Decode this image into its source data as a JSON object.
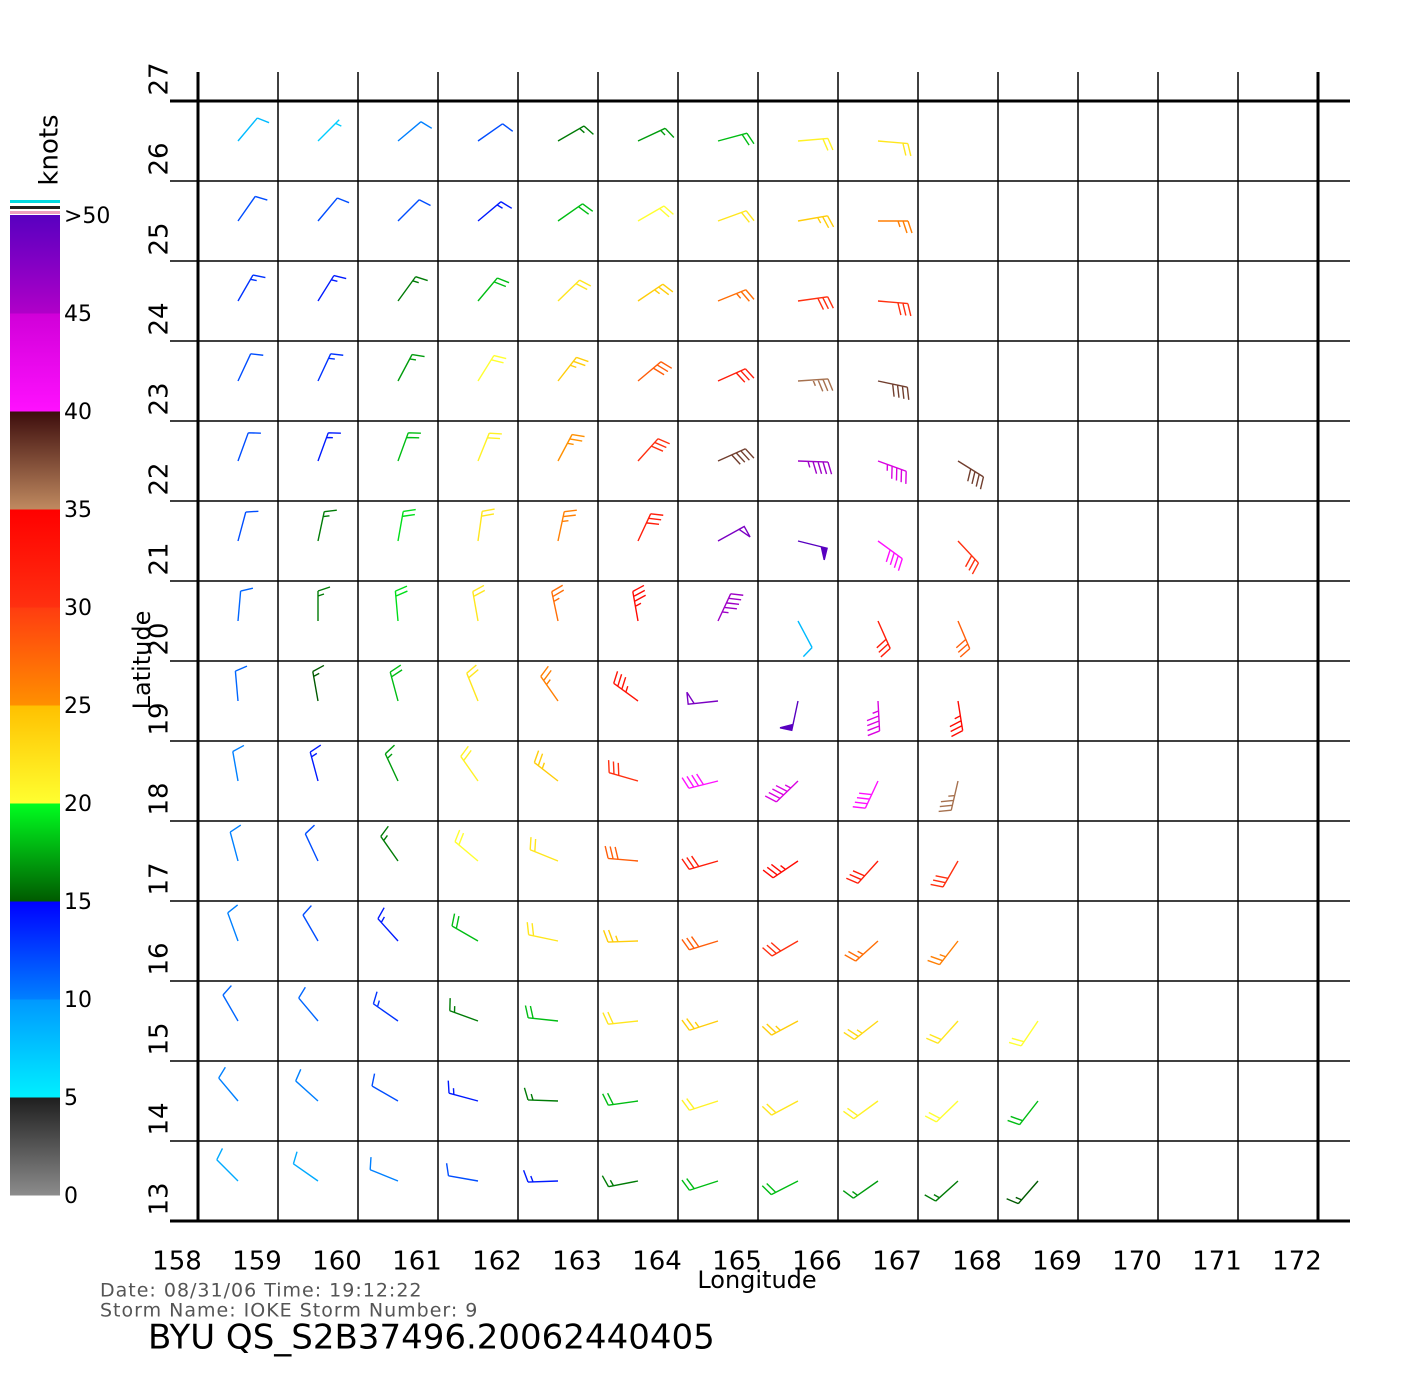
{
  "plot": {
    "x_label": "Longitude",
    "y_label": "Latitude",
    "xlim": [
      158,
      172
    ],
    "ylim": [
      13,
      27
    ],
    "xticks": [
      158,
      159,
      160,
      161,
      162,
      163,
      164,
      165,
      166,
      167,
      168,
      169,
      170,
      171,
      172
    ],
    "yticks": [
      13,
      14,
      15,
      16,
      17,
      18,
      19,
      20,
      21,
      22,
      23,
      24,
      25,
      26,
      27
    ],
    "grid": true,
    "rows": [
      {
        "lat": 26.5,
        "lon": [
          158.5,
          159.5,
          160.5,
          161.5,
          162.5,
          163.5,
          164.5,
          165.5,
          166.5
        ],
        "speed": [
          8,
          7,
          10,
          12,
          16,
          17,
          18,
          21,
          22
        ],
        "dir": [
          40,
          45,
          50,
          55,
          60,
          65,
          75,
          85,
          95
        ]
      },
      {
        "lat": 25.5,
        "lon": [
          158.5,
          159.5,
          160.5,
          161.5,
          162.5,
          163.5,
          164.5,
          165.5,
          166.5
        ],
        "speed": [
          12,
          12,
          12,
          14,
          18,
          20,
          22,
          24,
          26
        ],
        "dir": [
          35,
          40,
          45,
          50,
          55,
          60,
          70,
          80,
          90
        ]
      },
      {
        "lat": 24.5,
        "lon": [
          158.5,
          159.5,
          160.5,
          161.5,
          162.5,
          163.5,
          164.5,
          165.5,
          166.5
        ],
        "speed": [
          13,
          14,
          16,
          18,
          22,
          24,
          27,
          30,
          30
        ],
        "dir": [
          30,
          32,
          36,
          40,
          46,
          56,
          68,
          82,
          95
        ]
      },
      {
        "lat": 23.5,
        "lon": [
          158.5,
          159.5,
          160.5,
          161.5,
          162.5,
          163.5,
          164.5,
          165.5,
          166.5
        ],
        "speed": [
          12,
          13,
          17,
          20,
          24,
          28,
          32,
          36,
          38
        ],
        "dir": [
          25,
          25,
          28,
          32,
          38,
          50,
          66,
          86,
          102
        ]
      },
      {
        "lat": 22.5,
        "lon": [
          158.5,
          159.5,
          160.5,
          161.5,
          162.5,
          163.5,
          164.5,
          165.5,
          166.5,
          167.5
        ],
        "speed": [
          12,
          14,
          18,
          21,
          25,
          30,
          38,
          46,
          44,
          38
        ],
        "dir": [
          20,
          20,
          20,
          22,
          28,
          42,
          66,
          92,
          110,
          122
        ]
      },
      {
        "lat": 21.5,
        "lon": [
          158.5,
          159.5,
          160.5,
          161.5,
          162.5,
          163.5,
          164.5,
          165.5,
          166.5,
          167.5
        ],
        "speed": [
          12,
          16,
          19,
          22,
          26,
          32,
          48,
          50,
          40,
          30
        ],
        "dir": [
          15,
          12,
          10,
          8,
          12,
          25,
          61,
          104,
          126,
          137
        ]
      },
      {
        "lat": 20.5,
        "lon": [
          158.5,
          159.5,
          160.5,
          161.5,
          162.5,
          163.5,
          164.5,
          165.5,
          166.5,
          167.5
        ],
        "speed": [
          11,
          16,
          19,
          22,
          27,
          34,
          46,
          8,
          32,
          28
        ],
        "dir": [
          5,
          0,
          355,
          350,
          348,
          350,
          25,
          152,
          156,
          157
        ]
      },
      {
        "lat": 19.5,
        "lon": [
          158.5,
          159.5,
          160.5,
          161.5,
          162.5,
          163.5,
          164.5,
          165.5,
          166.5,
          167.5
        ],
        "speed": [
          11,
          15,
          18,
          22,
          26,
          33,
          48,
          52,
          44,
          34
        ],
        "dir": [
          355,
          350,
          345,
          338,
          325,
          306,
          264,
          192,
          177,
          171
        ]
      },
      {
        "lat": 18.5,
        "lon": [
          158.5,
          159.5,
          160.5,
          161.5,
          162.5,
          163.5,
          164.5,
          165.5,
          166.5,
          167.5
        ],
        "speed": [
          10,
          14,
          17,
          21,
          24,
          30,
          40,
          44,
          40,
          36
        ],
        "dir": [
          350,
          345,
          335,
          325,
          308,
          286,
          256,
          226,
          205,
          193
        ]
      },
      {
        "lat": 17.5,
        "lon": [
          158.5,
          159.5,
          160.5,
          161.5,
          162.5,
          163.5,
          164.5,
          165.5,
          166.5,
          167.5
        ],
        "speed": [
          10,
          12,
          16,
          20,
          22,
          28,
          32,
          34,
          32,
          30
        ],
        "dir": [
          345,
          335,
          325,
          310,
          292,
          275,
          254,
          236,
          222,
          210
        ]
      },
      {
        "lat": 16.5,
        "lon": [
          158.5,
          159.5,
          160.5,
          161.5,
          162.5,
          163.5,
          164.5,
          165.5,
          166.5,
          167.5
        ],
        "speed": [
          10,
          12,
          14,
          18,
          22,
          24,
          28,
          30,
          27,
          26
        ],
        "dir": [
          340,
          330,
          318,
          300,
          282,
          268,
          253,
          240,
          228,
          218
        ]
      },
      {
        "lat": 15.5,
        "lon": [
          158.5,
          159.5,
          160.5,
          161.5,
          162.5,
          163.5,
          164.5,
          165.5,
          166.5,
          167.5,
          168.5
        ],
        "speed": [
          11,
          11,
          13,
          16,
          18,
          22,
          24,
          24,
          23,
          22,
          20
        ],
        "dir": [
          330,
          320,
          305,
          290,
          276,
          264,
          252,
          242,
          232,
          222,
          214
        ]
      },
      {
        "lat": 14.5,
        "lon": [
          158.5,
          159.5,
          160.5,
          161.5,
          162.5,
          163.5,
          164.5,
          165.5,
          166.5,
          167.5,
          168.5
        ],
        "speed": [
          10,
          10,
          12,
          14,
          16,
          18,
          21,
          22,
          21,
          20,
          18
        ],
        "dir": [
          320,
          312,
          300,
          285,
          272,
          262,
          252,
          242,
          234,
          226,
          218
        ]
      },
      {
        "lat": 13.5,
        "lon": [
          158.5,
          159.5,
          160.5,
          161.5,
          162.5,
          163.5,
          164.5,
          165.5,
          166.5,
          167.5,
          168.5
        ],
        "speed": [
          9,
          9,
          10,
          12,
          14,
          16,
          18,
          18,
          17,
          16,
          15
        ],
        "dir": [
          315,
          305,
          292,
          280,
          268,
          259,
          252,
          243,
          235,
          228,
          221
        ]
      }
    ]
  },
  "colorbar": {
    "title": "knots",
    "lim": [
      0,
      50
    ],
    "ticks": [
      0,
      5,
      10,
      15,
      20,
      25,
      30,
      35,
      40,
      45,
      {
        "value": 50,
        "label": ">50"
      }
    ],
    "colors": [
      [
        "#8c8c8c",
        "#1e1e1e"
      ],
      [
        "#00f0ff",
        "#0098ff"
      ],
      [
        "#0080ff",
        "#0000ff"
      ],
      [
        "#005a00",
        "#00ff20"
      ],
      [
        "#ffff30",
        "#ffc000"
      ],
      [
        "#ff9000",
        "#ff3c10"
      ],
      [
        "#ff3010",
        "#ff0000"
      ],
      [
        "#c08a60",
        "#3c0c0c"
      ],
      [
        "#ff10ff",
        "#d000d8"
      ],
      [
        "#b000c8",
        "#5800c0"
      ]
    ]
  },
  "footer": {
    "line1": "Date: 08/31/06   Time: 19:12:22",
    "line2": "Storm  Name: IOKE   Storm  Number: 9",
    "title": "BYU  QS_S2B37496.20062440405"
  }
}
